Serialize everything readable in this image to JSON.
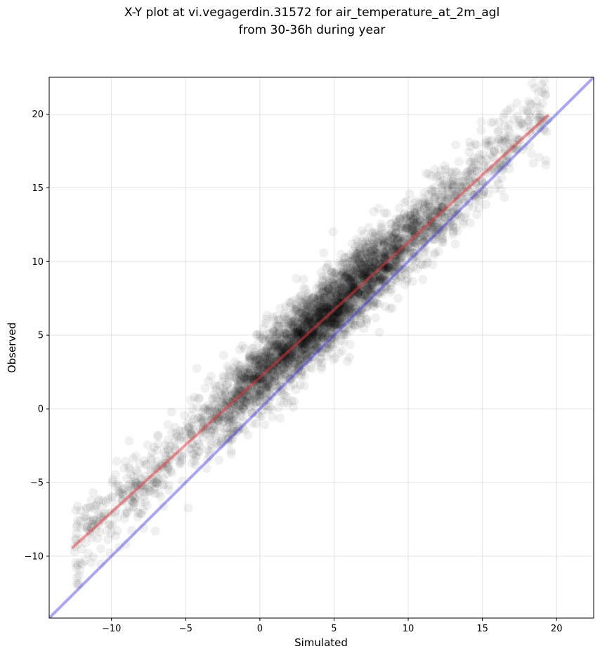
{
  "chart_data": {
    "type": "scatter",
    "title": "X-Y plot at vi.vegagerdin.31572 for air_temperature_at_2m_agl",
    "subtitle": "from 30-36h during year",
    "xlabel": "Simulated",
    "ylabel": "Observed",
    "xlim": [
      -14.2,
      22.5
    ],
    "ylim": [
      -14.2,
      22.5
    ],
    "x_ticks": [
      -10,
      -5,
      0,
      5,
      10,
      15,
      20
    ],
    "y_ticks": [
      -10,
      -5,
      0,
      5,
      10,
      15,
      20
    ],
    "x_tick_labels": [
      "−10",
      "−5",
      "0",
      "5",
      "10",
      "15",
      "20"
    ],
    "y_tick_labels": [
      "−10",
      "−5",
      "0",
      "5",
      "10",
      "15",
      "20"
    ],
    "grid": true,
    "point_color": "#000000",
    "fit_line": {
      "color": "#e8373a",
      "x": [
        -12.6,
        19.4
      ],
      "y": [
        -9.4,
        19.9
      ]
    },
    "identity_line": {
      "color": "#3b3bea",
      "x": [
        -14.2,
        22.5
      ],
      "y": [
        -14.2,
        22.5
      ]
    },
    "point_cloud": {
      "count": 4000,
      "x_range": [
        -12.8,
        19.4
      ],
      "slope": 0.92,
      "intercept": 2.3,
      "spread": 1.3
    }
  }
}
